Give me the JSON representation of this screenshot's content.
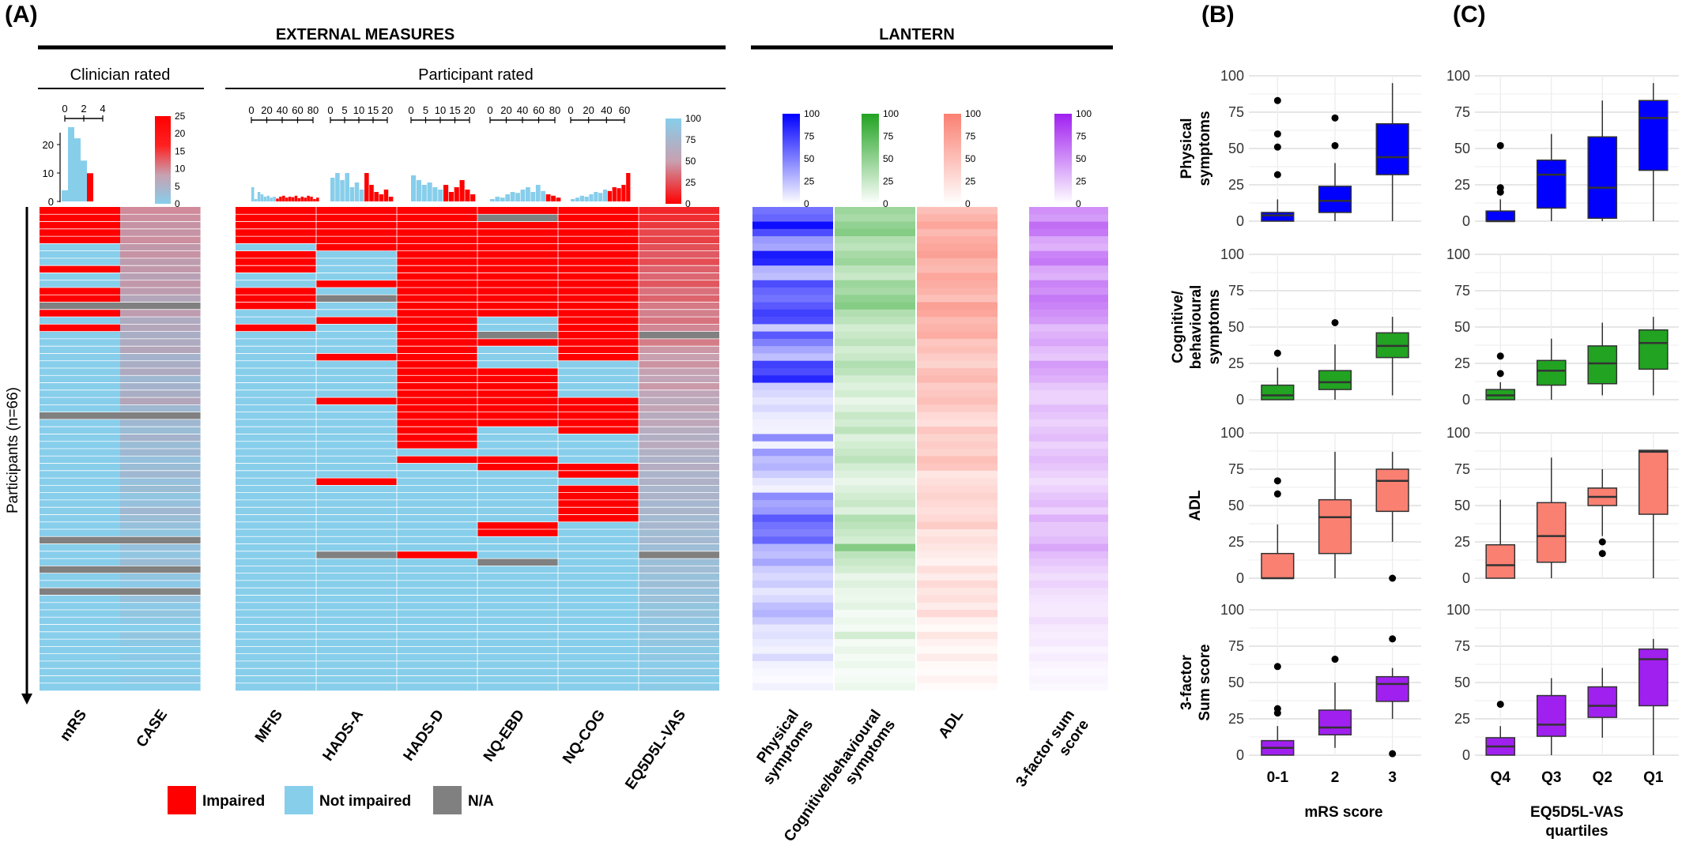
{
  "panel_labels": {
    "a": "(A)",
    "b": "(B)",
    "c": "(C)"
  },
  "section_headers": {
    "external": "EXTERNAL MEASURES",
    "lantern": "LANTERN",
    "clinician": "Clinician rated",
    "participant": "Participant rated"
  },
  "y_axis_label": "Participants (n=66)",
  "legend": [
    {
      "label": "Impaired",
      "color": "#ff0000"
    },
    {
      "label": "Not impaired",
      "color": "#87ceeb"
    },
    {
      "label": "N/A",
      "color": "#808080"
    }
  ],
  "colors": {
    "impaired": "#ff0000",
    "not_impaired": "#87ceeb",
    "na": "#808080",
    "physical": "#0000ff",
    "cognitive": "#22a322",
    "adl": "#fa8072",
    "sum": "#a020f0"
  },
  "chart_data": [
    {
      "type": "heatmap",
      "panel": "(A)",
      "rows": 66,
      "column_labels": [
        "mRS",
        "CASE",
        "MFIS",
        "HADS-A",
        "HADS-D",
        "NQ-EBD",
        "NQ-COG",
        "EQ5D5L-VAS",
        "Physical symptoms",
        "Cognitive/behavioural symptoms",
        "ADL",
        "3-factor sum score"
      ],
      "external": {
        "mRS": {
          "impaired": [
            0,
            1,
            2,
            3,
            4,
            8,
            11,
            12,
            14,
            16
          ],
          "na": [
            13,
            28,
            45,
            49,
            52
          ]
        },
        "CASE": {
          "values": [
            15,
            14,
            13,
            13,
            14,
            12,
            13,
            11,
            12,
            10,
            12,
            11,
            9,
            10,
            11,
            8,
            9,
            7,
            8,
            9,
            6,
            7,
            8,
            5,
            6,
            7,
            9,
            5,
            6,
            5,
            4,
            6,
            4,
            5,
            3,
            4,
            5,
            3,
            4,
            2,
            3,
            5,
            4,
            3,
            2,
            1,
            3,
            2,
            4,
            3,
            2,
            1,
            2,
            3,
            1,
            2,
            1,
            0,
            2,
            1,
            0,
            1,
            0,
            0,
            1,
            0
          ],
          "na": [
            13,
            28,
            45,
            49,
            52
          ]
        },
        "MFIS": {
          "impaired": [
            0,
            1,
            2,
            3,
            4,
            6,
            7,
            8,
            11,
            12,
            13,
            16
          ],
          "na": []
        },
        "HADS-A": {
          "impaired": [
            0,
            1,
            2,
            3,
            4,
            5,
            10,
            15,
            20,
            26,
            37
          ],
          "na": [
            12,
            47
          ]
        },
        "HADS-D": {
          "impaired": [
            0,
            1,
            2,
            3,
            4,
            5,
            6,
            7,
            8,
            9,
            10,
            11,
            12,
            13,
            14,
            15,
            16,
            17,
            18,
            19,
            20,
            21,
            22,
            23,
            24,
            25,
            26,
            27,
            28,
            29,
            30,
            31,
            32,
            34,
            47
          ],
          "na": []
        },
        "NQ-EBD": {
          "impaired": [
            0,
            1,
            2,
            3,
            4,
            5,
            6,
            7,
            8,
            9,
            10,
            11,
            12,
            13,
            14,
            18,
            22,
            23,
            24,
            25,
            26,
            27,
            28,
            29,
            34,
            35,
            43,
            44
          ],
          "na": [
            1,
            17,
            48
          ]
        },
        "NQ-COG": {
          "impaired": [
            0,
            1,
            2,
            3,
            4,
            5,
            6,
            7,
            8,
            9,
            10,
            11,
            12,
            13,
            14,
            15,
            16,
            17,
            18,
            19,
            20,
            26,
            27,
            28,
            29,
            30,
            35,
            36,
            38,
            39,
            40,
            41,
            42
          ],
          "na": []
        },
        "EQ5D5L-VAS": {
          "values": [
            12,
            14,
            18,
            22,
            20,
            25,
            28,
            24,
            30,
            32,
            27,
            35,
            31,
            38,
            40,
            36,
            42,
            44,
            39,
            47,
            50,
            46,
            52,
            55,
            48,
            57,
            60,
            54,
            62,
            58,
            64,
            66,
            61,
            68,
            70,
            65,
            72,
            69,
            74,
            71,
            76,
            73,
            78,
            75,
            80,
            77,
            82,
            79,
            84,
            81,
            86,
            83,
            88,
            85,
            90,
            87,
            92,
            89,
            94,
            91,
            96,
            93,
            98,
            95,
            99,
            97
          ],
          "na": [
            17,
            47
          ]
        }
      },
      "lantern": {
        "Physical symptoms": [
          55,
          60,
          95,
          70,
          40,
          35,
          90,
          85,
          30,
          25,
          70,
          60,
          55,
          65,
          75,
          70,
          20,
          65,
          50,
          35,
          25,
          75,
          70,
          85,
          20,
          15,
          10,
          15,
          8,
          6,
          5,
          45,
          5,
          40,
          25,
          30,
          20,
          10,
          5,
          45,
          35,
          40,
          65,
          55,
          50,
          60,
          30,
          25,
          35,
          20,
          15,
          20,
          10,
          15,
          25,
          30,
          20,
          10,
          12,
          8,
          5,
          15,
          5,
          3,
          2,
          5
        ],
        "Cognitive/behavioural symptoms": [
          45,
          40,
          50,
          55,
          35,
          30,
          40,
          45,
          30,
          25,
          45,
          40,
          50,
          55,
          35,
          30,
          20,
          25,
          30,
          20,
          25,
          35,
          30,
          20,
          15,
          20,
          10,
          15,
          25,
          20,
          30,
          15,
          20,
          25,
          30,
          20,
          15,
          10,
          15,
          20,
          25,
          15,
          35,
          30,
          25,
          20,
          55,
          30,
          25,
          20,
          10,
          15,
          10,
          8,
          12,
          5,
          8,
          5,
          20,
          5,
          10,
          5,
          8,
          3,
          5,
          8
        ],
        "ADL": [
          50,
          60,
          70,
          55,
          65,
          70,
          75,
          60,
          55,
          70,
          65,
          60,
          50,
          75,
          70,
          55,
          60,
          65,
          45,
          50,
          40,
          35,
          50,
          55,
          40,
          45,
          50,
          40,
          30,
          25,
          45,
          35,
          40,
          35,
          50,
          45,
          20,
          25,
          30,
          35,
          30,
          25,
          30,
          40,
          20,
          25,
          20,
          15,
          10,
          25,
          15,
          30,
          20,
          25,
          15,
          30,
          10,
          5,
          20,
          10,
          5,
          15,
          5,
          3,
          10,
          3
        ],
        "3-factor sum score": [
          50,
          45,
          65,
          60,
          40,
          35,
          55,
          60,
          40,
          35,
          55,
          50,
          60,
          55,
          50,
          45,
          30,
          35,
          40,
          30,
          25,
          45,
          40,
          35,
          25,
          20,
          20,
          30,
          25,
          20,
          25,
          30,
          20,
          25,
          30,
          25,
          20,
          15,
          20,
          25,
          30,
          20,
          35,
          25,
          25,
          30,
          40,
          30,
          25,
          20,
          15,
          20,
          15,
          12,
          10,
          10,
          15,
          10,
          8,
          10,
          5,
          8,
          5,
          3,
          5,
          3
        ]
      },
      "histograms": {
        "mRS": {
          "ticks": [
            "0",
            "2",
            "4"
          ],
          "yticks": [
            "0",
            "10",
            "20"
          ]
        },
        "MFIS": {
          "ticks": [
            "0",
            "20",
            "40",
            "60",
            "80"
          ]
        },
        "HADS-A": {
          "ticks": [
            "0",
            "5",
            "10",
            "15",
            "20"
          ]
        },
        "HADS-D": {
          "ticks": [
            "0",
            "5",
            "10",
            "15",
            "20"
          ]
        },
        "NQ-EBD": {
          "ticks": [
            "0",
            "20",
            "40",
            "60",
            "80"
          ]
        },
        "NQ-COG": {
          "ticks": [
            "0",
            "20",
            "40",
            "60"
          ]
        }
      },
      "colorbars": {
        "CASE": {
          "ticks": [
            "0",
            "5",
            "10",
            "15",
            "20",
            "25"
          ]
        },
        "EQ5D5L-VAS": {
          "ticks": [
            "0",
            "25",
            "50",
            "75",
            "100"
          ]
        },
        "Physical symptoms": {
          "ticks": [
            "0",
            "25",
            "50",
            "75",
            "100"
          ]
        },
        "Cognitive/behavioural symptoms": {
          "ticks": [
            "0",
            "25",
            "50",
            "75",
            "100"
          ]
        },
        "ADL": {
          "ticks": [
            "0",
            "25",
            "50",
            "75",
            "100"
          ]
        },
        "3-factor sum score": {
          "ticks": [
            "0",
            "25",
            "50",
            "75",
            "100"
          ]
        }
      }
    },
    {
      "type": "box",
      "panel": "(B)",
      "xlabel": "mRS score",
      "categories": [
        "0-1",
        "2",
        "3"
      ],
      "ylim": [
        0,
        100
      ],
      "yticks": [
        "0",
        "25",
        "50",
        "75",
        "100"
      ],
      "rows": [
        {
          "label": "Physical symptoms",
          "color": "#0000ff",
          "boxes": [
            {
              "min": 0,
              "q1": 0,
              "median": 4,
              "q3": 6,
              "max": 15,
              "outliers": [
                32,
                51,
                60,
                83
              ]
            },
            {
              "min": 0,
              "q1": 6,
              "median": 14,
              "q3": 24,
              "max": 40,
              "outliers": [
                52,
                71
              ]
            },
            {
              "min": 0,
              "q1": 32,
              "median": 44,
              "q3": 67,
              "max": 95,
              "outliers": []
            }
          ]
        },
        {
          "label": "Cognitive/ behavioural symptoms",
          "color": "#22a322",
          "boxes": [
            {
              "min": 0,
              "q1": 0,
              "median": 3,
              "q3": 10,
              "max": 22,
              "outliers": [
                32
              ]
            },
            {
              "min": 0,
              "q1": 7,
              "median": 12,
              "q3": 20,
              "max": 38,
              "outliers": [
                53
              ]
            },
            {
              "min": 3,
              "q1": 29,
              "median": 37,
              "q3": 46,
              "max": 57,
              "outliers": []
            }
          ]
        },
        {
          "label": "ADL",
          "color": "#fa8072",
          "boxes": [
            {
              "min": 0,
              "q1": 0,
              "median": 0,
              "q3": 17,
              "max": 37,
              "outliers": [
                58,
                67
              ]
            },
            {
              "min": 0,
              "q1": 17,
              "median": 42,
              "q3": 54,
              "max": 87,
              "outliers": []
            },
            {
              "min": 25,
              "q1": 46,
              "median": 67,
              "q3": 75,
              "max": 87,
              "outliers": [
                0
              ]
            }
          ]
        },
        {
          "label": "3-factor Sum score",
          "color": "#a020f0",
          "boxes": [
            {
              "min": 0,
              "q1": 0,
              "median": 5,
              "q3": 10,
              "max": 20,
              "outliers": [
                29,
                32,
                61
              ]
            },
            {
              "min": 5,
              "q1": 14,
              "median": 19,
              "q3": 31,
              "max": 50,
              "outliers": [
                66
              ]
            },
            {
              "min": 25,
              "q1": 37,
              "median": 49,
              "q3": 54,
              "max": 60,
              "outliers": [
                80,
                1
              ]
            }
          ]
        }
      ]
    },
    {
      "type": "box",
      "panel": "(C)",
      "xlabel": "EQ5D5L-VAS quartiles",
      "categories": [
        "Q4",
        "Q3",
        "Q2",
        "Q1"
      ],
      "ylim": [
        0,
        100
      ],
      "yticks": [
        "0",
        "25",
        "50",
        "75",
        "100"
      ],
      "rows": [
        {
          "label": "Physical symptoms",
          "color": "#0000ff",
          "boxes": [
            {
              "min": 0,
              "q1": 0,
              "median": 0,
              "q3": 7,
              "max": 15,
              "outliers": [
                20,
                23,
                52
              ]
            },
            {
              "min": 0,
              "q1": 9,
              "median": 32,
              "q3": 42,
              "max": 60,
              "outliers": []
            },
            {
              "min": 0,
              "q1": 2,
              "median": 23,
              "q3": 58,
              "max": 83,
              "outliers": []
            },
            {
              "min": 0,
              "q1": 35,
              "median": 71,
              "q3": 83,
              "max": 95,
              "outliers": []
            }
          ]
        },
        {
          "label": "Cognitive/ behavioural symptoms",
          "color": "#22a322",
          "boxes": [
            {
              "min": 0,
              "q1": 0,
              "median": 3,
              "q3": 7,
              "max": 12,
              "outliers": [
                18,
                30
              ]
            },
            {
              "min": 0,
              "q1": 10,
              "median": 20,
              "q3": 27,
              "max": 42,
              "outliers": []
            },
            {
              "min": 3,
              "q1": 11,
              "median": 25,
              "q3": 37,
              "max": 53,
              "outliers": []
            },
            {
              "min": 3,
              "q1": 21,
              "median": 39,
              "q3": 48,
              "max": 57,
              "outliers": []
            }
          ]
        },
        {
          "label": "ADL",
          "color": "#fa8072",
          "boxes": [
            {
              "min": 0,
              "q1": 0,
              "median": 9,
              "q3": 23,
              "max": 54,
              "outliers": []
            },
            {
              "min": 0,
              "q1": 11,
              "median": 29,
              "q3": 52,
              "max": 83,
              "outliers": []
            },
            {
              "min": 29,
              "q1": 50,
              "median": 56,
              "q3": 62,
              "max": 75,
              "outliers": [
                17,
                25
              ]
            },
            {
              "min": 0,
              "q1": 44,
              "median": 87,
              "q3": 88,
              "max": 88,
              "outliers": []
            }
          ]
        },
        {
          "label": "3-factor Sum score",
          "color": "#a020f0",
          "boxes": [
            {
              "min": 0,
              "q1": 0,
              "median": 6,
              "q3": 12,
              "max": 20,
              "outliers": [
                35
              ]
            },
            {
              "min": 0,
              "q1": 13,
              "median": 21,
              "q3": 41,
              "max": 53,
              "outliers": []
            },
            {
              "min": 12,
              "q1": 26,
              "median": 34,
              "q3": 47,
              "max": 60,
              "outliers": []
            },
            {
              "min": 0,
              "q1": 34,
              "median": 66,
              "q3": 73,
              "max": 80,
              "outliers": []
            }
          ]
        }
      ]
    }
  ]
}
